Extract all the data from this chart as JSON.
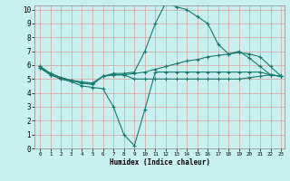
{
  "xlabel": "Humidex (Indice chaleur)",
  "xlim": [
    0,
    23
  ],
  "ylim": [
    0,
    10
  ],
  "bg_color": "#c8f0ee",
  "line_color": "#1a7a6e",
  "grid_color": "#d8a0a0",
  "xticks": [
    0,
    1,
    2,
    3,
    4,
    5,
    6,
    7,
    8,
    9,
    10,
    11,
    12,
    13,
    14,
    15,
    16,
    17,
    18,
    19,
    20,
    21,
    22,
    23
  ],
  "yticks": [
    0,
    1,
    2,
    3,
    4,
    5,
    6,
    7,
    8,
    9,
    10
  ],
  "line_dip_x": [
    0,
    1,
    2,
    3,
    4,
    5,
    6,
    7,
    8,
    9,
    10,
    11,
    12,
    13,
    14,
    15,
    16,
    17,
    18,
    19,
    20,
    21,
    22,
    23
  ],
  "line_dip_y": [
    5.8,
    5.3,
    5.0,
    4.8,
    4.5,
    4.4,
    4.3,
    3.0,
    1.0,
    0.2,
    2.8,
    5.5,
    5.5,
    5.5,
    5.5,
    5.5,
    5.5,
    5.5,
    5.5,
    5.5,
    5.5,
    5.5,
    5.3,
    5.2
  ],
  "line_peak_x": [
    0,
    1,
    2,
    3,
    4,
    5,
    6,
    7,
    8,
    9,
    10,
    11,
    12,
    13,
    14,
    15,
    16,
    17,
    18,
    19,
    20,
    21,
    22,
    23
  ],
  "line_peak_y": [
    5.9,
    5.4,
    5.1,
    4.9,
    4.7,
    4.6,
    5.2,
    5.4,
    5.4,
    5.5,
    7.0,
    9.0,
    10.5,
    10.2,
    10.0,
    9.5,
    9.0,
    7.5,
    6.8,
    7.0,
    6.5,
    5.9,
    5.3,
    5.2
  ],
  "line_flat_x": [
    0,
    1,
    2,
    3,
    4,
    5,
    6,
    7,
    8,
    9,
    10,
    11,
    12,
    13,
    14,
    15,
    16,
    17,
    18,
    19,
    20,
    21,
    22,
    23
  ],
  "line_flat_y": [
    5.8,
    5.3,
    5.0,
    4.9,
    4.8,
    4.7,
    5.2,
    5.3,
    5.3,
    5.0,
    5.0,
    5.0,
    5.0,
    5.0,
    5.0,
    5.0,
    5.0,
    5.0,
    5.0,
    5.0,
    5.1,
    5.2,
    5.3,
    5.2
  ],
  "line_rise_x": [
    0,
    1,
    2,
    3,
    4,
    5,
    6,
    7,
    8,
    9,
    10,
    11,
    12,
    13,
    14,
    15,
    16,
    17,
    18,
    19,
    20,
    21,
    22,
    23
  ],
  "line_rise_y": [
    5.9,
    5.4,
    5.1,
    4.9,
    4.7,
    4.7,
    5.2,
    5.3,
    5.3,
    5.4,
    5.5,
    5.7,
    5.9,
    6.1,
    6.3,
    6.4,
    6.6,
    6.7,
    6.8,
    6.9,
    6.8,
    6.6,
    5.9,
    5.2
  ]
}
